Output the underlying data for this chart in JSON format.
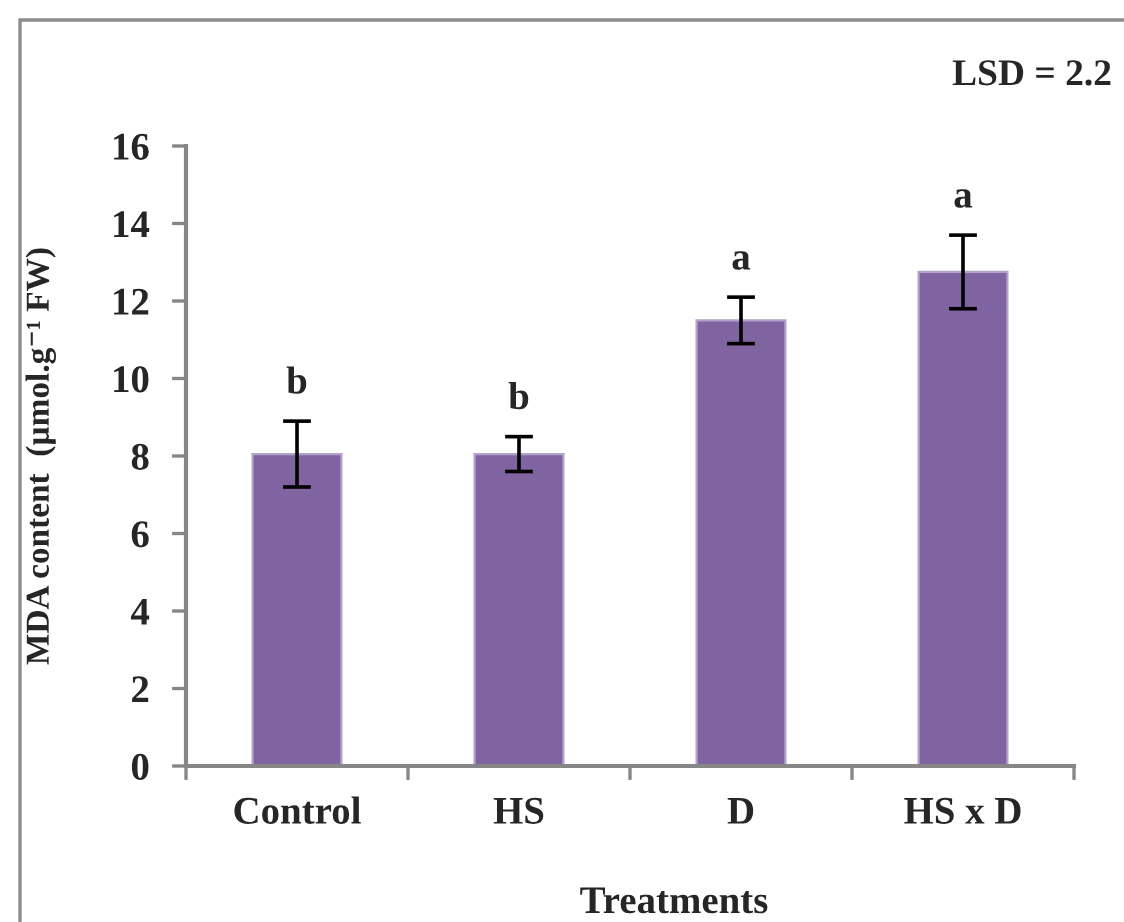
{
  "chart_data": {
    "type": "bar",
    "xlabel": "Treatments",
    "ylabel": "MDA content  (µmol.g⁻¹ FW)",
    "categories": [
      "Control",
      "HS",
      "D",
      "HS x D"
    ],
    "values": [
      8.05,
      8.05,
      11.5,
      12.75
    ],
    "errors": [
      0.85,
      0.45,
      0.6,
      0.95
    ],
    "color": "#8064a2",
    "ylim": [
      0,
      16
    ],
    "yticks": [
      0,
      2,
      4,
      6,
      8,
      10,
      12,
      14,
      16
    ],
    "annotations": [
      "LSD = 2.2",
      {
        "text": "b",
        "x": "Control",
        "y": 8.9
      },
      {
        "text": "b",
        "x": "HS",
        "y": 8.5
      },
      {
        "text": "a",
        "x": "D",
        "y": 12.1
      },
      {
        "text": "a",
        "x": "HS x D",
        "y": 13.7
      }
    ]
  }
}
